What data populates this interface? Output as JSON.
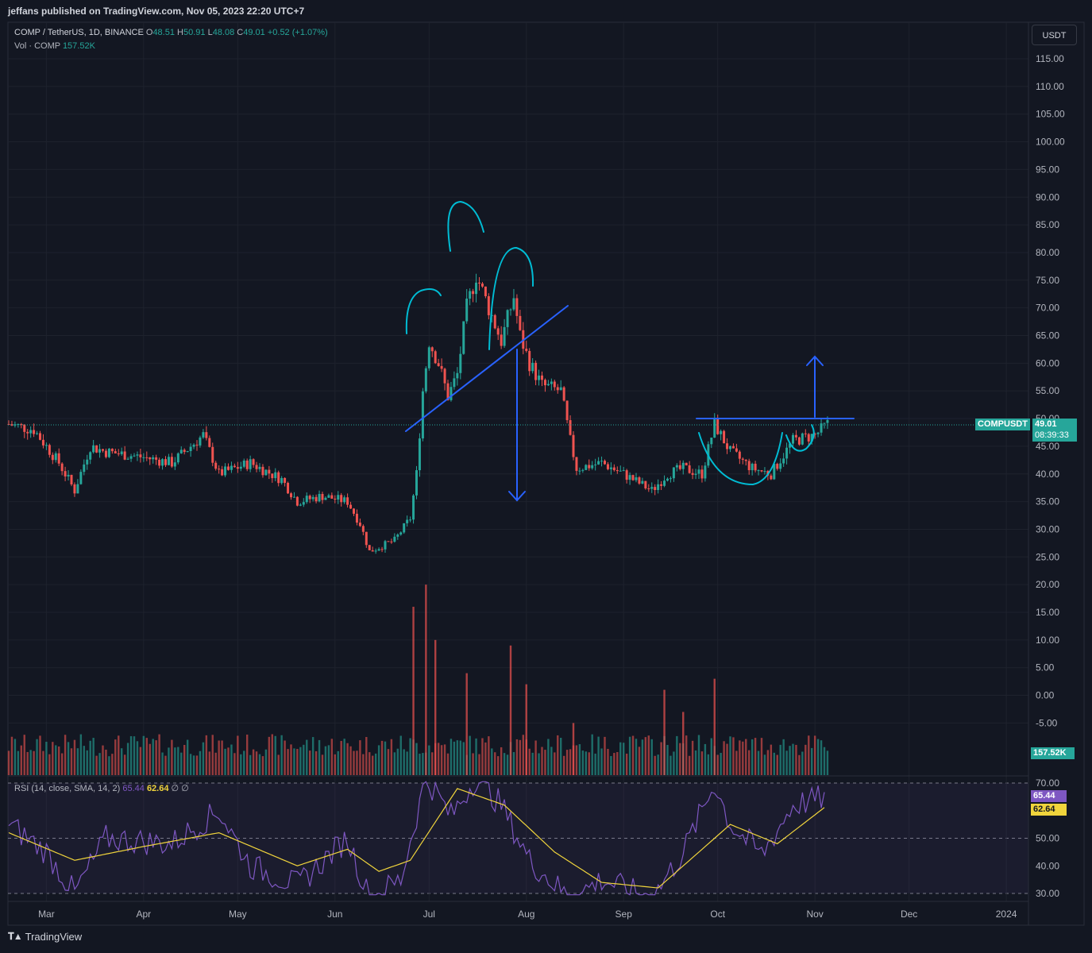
{
  "header": {
    "published": "jeffans published on TradingView.com, Nov 05, 2023 22:20 UTC+7"
  },
  "legend": {
    "symbol": "COMP / TetherUS, 1D, BINANCE",
    "open_label": "O",
    "open": "48.51",
    "high_label": "H",
    "high": "50.91",
    "low_label": "L",
    "low": "48.08",
    "close_label": "C",
    "close": "49.01",
    "change": "+0.52 (+1.07%)",
    "vol_label": "Vol · COMP",
    "vol": "157.52K"
  },
  "rsi_legend": {
    "label": "RSI (14, close, SMA, 14, 2)",
    "rsi": "65.44",
    "sma": "62.64",
    "extra": "∅ ∅"
  },
  "currency_button": "USDT",
  "price_tag": {
    "symbol": "COMPUSDT",
    "price": "49.01",
    "countdown": "08:39:33"
  },
  "volume_tag": "157.52K",
  "rsi_tags": {
    "rsi": "65.44",
    "sma": "62.64"
  },
  "footer": {
    "brand": "TradingView",
    "logo": "tradingview-logo"
  },
  "colors": {
    "up": "#26a69a",
    "down": "#ef5350",
    "drawing_blue": "#2962ff",
    "drawing_cyan": "#00bcd4",
    "rsi": "#7e57c2",
    "rsi_sma": "#f0d43c",
    "background": "#131722"
  },
  "chart_data": {
    "type": "candlestick",
    "price_axis_labels": [
      "115.00",
      "110.00",
      "105.00",
      "100.00",
      "95.00",
      "90.00",
      "85.00",
      "80.00",
      "75.00",
      "70.00",
      "65.00",
      "60.00",
      "55.00",
      "50.00",
      "45.00",
      "40.00",
      "35.00",
      "30.00",
      "25.00",
      "20.00",
      "15.00",
      "10.00",
      "5.00",
      "0.00",
      "-5.00"
    ],
    "rsi_axis_labels": [
      "70.00",
      "50.00",
      "40.00",
      "30.00"
    ],
    "x_tick_labels": [
      "Mar",
      "Apr",
      "May",
      "Jun",
      "Jul",
      "Aug",
      "Sep",
      "Oct",
      "Nov",
      "Dec",
      "2024"
    ],
    "price_range": [
      -5,
      115
    ],
    "rsi_range": [
      30,
      70
    ],
    "rsi_levels": [
      70,
      50,
      30
    ],
    "close_path": [
      [
        "2023-02-17",
        49
      ],
      [
        "2023-02-25",
        48
      ],
      [
        "2023-03-05",
        42
      ],
      [
        "2023-03-10",
        37
      ],
      [
        "2023-03-15",
        45
      ],
      [
        "2023-03-20",
        44
      ],
      [
        "2023-04-01",
        43
      ],
      [
        "2023-04-10",
        42
      ],
      [
        "2023-04-20",
        47
      ],
      [
        "2023-04-25",
        40
      ],
      [
        "2023-05-05",
        42
      ],
      [
        "2023-05-15",
        39
      ],
      [
        "2023-05-20",
        35
      ],
      [
        "2023-05-28",
        36
      ],
      [
        "2023-06-05",
        35
      ],
      [
        "2023-06-09",
        31
      ],
      [
        "2023-06-12",
        26
      ],
      [
        "2023-06-20",
        28
      ],
      [
        "2023-06-25",
        32
      ],
      [
        "2023-06-27",
        40
      ],
      [
        "2023-06-29",
        55
      ],
      [
        "2023-07-01",
        64
      ],
      [
        "2023-07-04",
        60
      ],
      [
        "2023-07-07",
        54
      ],
      [
        "2023-07-10",
        58
      ],
      [
        "2023-07-13",
        70
      ],
      [
        "2023-07-16",
        76
      ],
      [
        "2023-07-20",
        70
      ],
      [
        "2023-07-24",
        64
      ],
      [
        "2023-07-28",
        72
      ],
      [
        "2023-07-30",
        65
      ],
      [
        "2023-08-02",
        60
      ],
      [
        "2023-08-06",
        56
      ],
      [
        "2023-08-12",
        55
      ],
      [
        "2023-08-15",
        46
      ],
      [
        "2023-08-17",
        41
      ],
      [
        "2023-08-25",
        42
      ],
      [
        "2023-09-01",
        40
      ],
      [
        "2023-09-10",
        37
      ],
      [
        "2023-09-15",
        40
      ],
      [
        "2023-09-20",
        41
      ],
      [
        "2023-09-26",
        40
      ],
      [
        "2023-09-30",
        49
      ],
      [
        "2023-10-05",
        44
      ],
      [
        "2023-10-12",
        41
      ],
      [
        "2023-10-18",
        40
      ],
      [
        "2023-10-25",
        46
      ],
      [
        "2023-11-01",
        47
      ],
      [
        "2023-11-05",
        49
      ]
    ],
    "volume_spikes_millions": [
      [
        "2023-06-26",
        16
      ],
      [
        "2023-06-30",
        20
      ],
      [
        "2023-07-03",
        10
      ],
      [
        "2023-07-13",
        4
      ],
      [
        "2023-07-27",
        9
      ],
      [
        "2023-08-01",
        2
      ],
      [
        "2023-08-16",
        -5
      ],
      [
        "2023-09-14",
        1
      ],
      [
        "2023-09-20",
        -3
      ],
      [
        "2023-09-30",
        3
      ]
    ],
    "rsi_path": [
      [
        "2023-02-17",
        55
      ],
      [
        "2023-03-01",
        45
      ],
      [
        "2023-03-10",
        30
      ],
      [
        "2023-03-20",
        50
      ],
      [
        "2023-04-10",
        48
      ],
      [
        "2023-04-25",
        60
      ],
      [
        "2023-05-05",
        40
      ],
      [
        "2023-05-20",
        33
      ],
      [
        "2023-06-05",
        50
      ],
      [
        "2023-06-12",
        28
      ],
      [
        "2023-06-22",
        35
      ],
      [
        "2023-06-30",
        72
      ],
      [
        "2023-07-08",
        58
      ],
      [
        "2023-07-16",
        72
      ],
      [
        "2023-07-24",
        62
      ],
      [
        "2023-08-02",
        42
      ],
      [
        "2023-08-15",
        28
      ],
      [
        "2023-08-25",
        35
      ],
      [
        "2023-09-10",
        28
      ],
      [
        "2023-09-20",
        45
      ],
      [
        "2023-09-30",
        70
      ],
      [
        "2023-10-05",
        55
      ],
      [
        "2023-10-15",
        44
      ],
      [
        "2023-10-25",
        62
      ],
      [
        "2023-11-05",
        65
      ]
    ],
    "rsi_sma_path": [
      [
        "2023-02-17",
        52
      ],
      [
        "2023-03-10",
        42
      ],
      [
        "2023-04-01",
        47
      ],
      [
        "2023-04-25",
        52
      ],
      [
        "2023-05-20",
        40
      ],
      [
        "2023-06-05",
        46
      ],
      [
        "2023-06-15",
        38
      ],
      [
        "2023-06-25",
        42
      ],
      [
        "2023-07-10",
        68
      ],
      [
        "2023-07-25",
        62
      ],
      [
        "2023-08-10",
        45
      ],
      [
        "2023-08-25",
        34
      ],
      [
        "2023-09-12",
        32
      ],
      [
        "2023-09-30",
        50
      ],
      [
        "2023-10-05",
        55
      ],
      [
        "2023-10-20",
        48
      ],
      [
        "2023-11-05",
        62
      ]
    ]
  }
}
